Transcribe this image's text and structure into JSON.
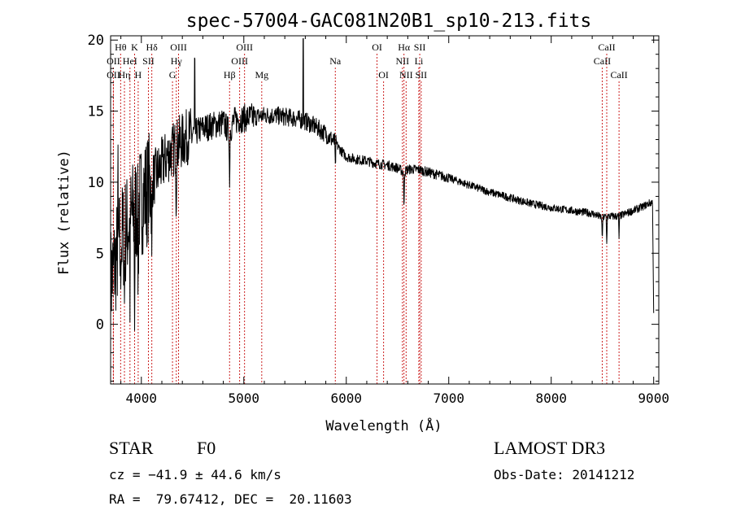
{
  "chart_data": {
    "type": "line",
    "title": "spec-57004-GAC081N20B1_sp10-213.fits",
    "xlabel": "Wavelength (Å)",
    "ylabel": "Flux (relative)",
    "xlim": [
      3700,
      9050
    ],
    "ylim": [
      -4.2,
      20.3
    ],
    "xticks": [
      4000,
      5000,
      6000,
      7000,
      8000,
      9000
    ],
    "xtick_labels": [
      "4000",
      "5000",
      "6000",
      "7000",
      "8000",
      "9000"
    ],
    "yticks": [
      0,
      5,
      10,
      15,
      20
    ],
    "ytick_labels": [
      "0",
      "5",
      "10",
      "15",
      "20"
    ],
    "grid": false,
    "spectrum": {
      "x": [
        3700,
        3740,
        3780,
        3820,
        3860,
        3900,
        3940,
        3980,
        4020,
        4060,
        4100,
        4150,
        4200,
        4250,
        4300,
        4350,
        4400,
        4450,
        4500,
        4550,
        4600,
        4650,
        4700,
        4750,
        4800,
        4860,
        4900,
        4950,
        5000,
        5100,
        5200,
        5300,
        5400,
        5500,
        5600,
        5700,
        5800,
        5890,
        5950,
        6000,
        6100,
        6200,
        6300,
        6400,
        6500,
        6563,
        6600,
        6700,
        6800,
        6900,
        7000,
        7200,
        7400,
        7600,
        7800,
        8000,
        8200,
        8400,
        8498,
        8542,
        8662,
        8800,
        8900,
        8950,
        8990,
        9000
      ],
      "y": [
        3.0,
        4.2,
        5.5,
        6.2,
        6.8,
        7.5,
        8.0,
        8.5,
        9.0,
        9.5,
        10.0,
        10.6,
        11.2,
        11.8,
        12.2,
        12.6,
        12.9,
        13.2,
        13.4,
        13.6,
        13.8,
        13.9,
        14.0,
        14.1,
        14.2,
        13.5,
        14.3,
        14.4,
        14.5,
        14.6,
        14.7,
        14.7,
        14.6,
        14.5,
        14.3,
        13.9,
        13.4,
        12.8,
        12.2,
        11.8,
        11.6,
        11.5,
        11.3,
        11.2,
        11.0,
        10.7,
        10.9,
        10.9,
        10.7,
        10.5,
        10.3,
        9.8,
        9.3,
        8.9,
        8.5,
        8.2,
        8.0,
        7.8,
        7.5,
        7.6,
        7.6,
        8.0,
        8.3,
        8.5,
        8.6,
        0.8
      ]
    },
    "line_markers": [
      {
        "label": "Hθ",
        "x": 3798,
        "row": 0
      },
      {
        "label": "K",
        "x": 3934,
        "row": 0
      },
      {
        "label": "Hδ",
        "x": 4102,
        "row": 0
      },
      {
        "label": "OIII",
        "x": 4363,
        "row": 0
      },
      {
        "label": "OIII",
        "x": 5007,
        "row": 0
      },
      {
        "label": "OI",
        "x": 6300,
        "row": 0
      },
      {
        "label": "Hα",
        "x": 6563,
        "row": 0
      },
      {
        "label": "SII",
        "x": 6717,
        "row": 0
      },
      {
        "label": "CaII",
        "x": 8542,
        "row": 0
      },
      {
        "label": "OII",
        "x": 3727,
        "row": 1
      },
      {
        "label": "HeI",
        "x": 3889,
        "row": 1
      },
      {
        "label": "SII",
        "x": 4069,
        "row": 1
      },
      {
        "label": "Hγ",
        "x": 4341,
        "row": 1
      },
      {
        "label": "OIII",
        "x": 4959,
        "row": 1
      },
      {
        "label": "Na",
        "x": 5893,
        "row": 1
      },
      {
        "label": "NII",
        "x": 6548,
        "row": 1
      },
      {
        "label": "Li",
        "x": 6708,
        "row": 1
      },
      {
        "label": "CaII",
        "x": 8498,
        "row": 1
      },
      {
        "label": "OII",
        "x": 3727,
        "row": 2
      },
      {
        "label": "Hη",
        "x": 3835,
        "row": 2
      },
      {
        "label": "H",
        "x": 3969,
        "row": 2
      },
      {
        "label": "G",
        "x": 4304,
        "row": 2
      },
      {
        "label": "Hβ",
        "x": 4861,
        "row": 2
      },
      {
        "label": "Mg",
        "x": 5175,
        "row": 2
      },
      {
        "label": "OI",
        "x": 6364,
        "row": 2
      },
      {
        "label": "NII",
        "x": 6584,
        "row": 2
      },
      {
        "label": "SII",
        "x": 6731,
        "row": 2
      },
      {
        "label": "CaII",
        "x": 8662,
        "row": 2
      }
    ]
  },
  "info": {
    "object_class": "STAR",
    "subclass": "F0",
    "survey": "LAMOST DR3",
    "redshift_line": "cz = −41.9 ± 44.6 km/s",
    "obs_date_line": "Obs-Date: 20141212",
    "coords_line": "RA =  79.67412, DEC =  20.11603"
  }
}
